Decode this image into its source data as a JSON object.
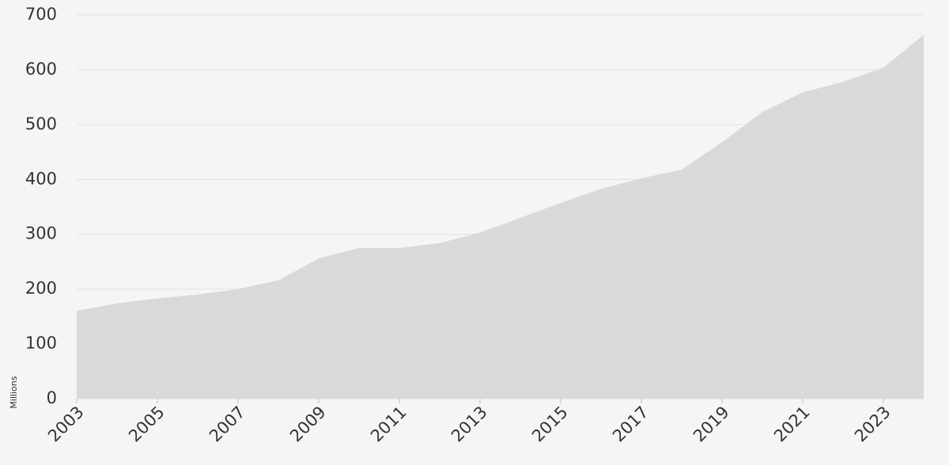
{
  "chart_data": {
    "type": "area",
    "y_label": "Millions",
    "x": [
      2003,
      2004,
      2005,
      2006,
      2007,
      2008,
      2009,
      2010,
      2011,
      2012,
      2013,
      2014,
      2015,
      2016,
      2017,
      2018,
      2019,
      2020,
      2021,
      2022,
      2023,
      2024
    ],
    "values": [
      160,
      174,
      183,
      190,
      200,
      216,
      256,
      275,
      275,
      284,
      303,
      330,
      357,
      383,
      402,
      418,
      468,
      523,
      559,
      578,
      604,
      664
    ],
    "color": "#d9d9d9",
    "xlim": [
      2003,
      2024
    ],
    "xticks": [
      2003,
      2005,
      2007,
      2009,
      2011,
      2013,
      2015,
      2017,
      2019,
      2021,
      2023
    ],
    "ylim": [
      0,
      700
    ],
    "yticks": [
      0,
      100,
      200,
      300,
      400,
      500,
      600,
      700
    ],
    "grid": true
  }
}
